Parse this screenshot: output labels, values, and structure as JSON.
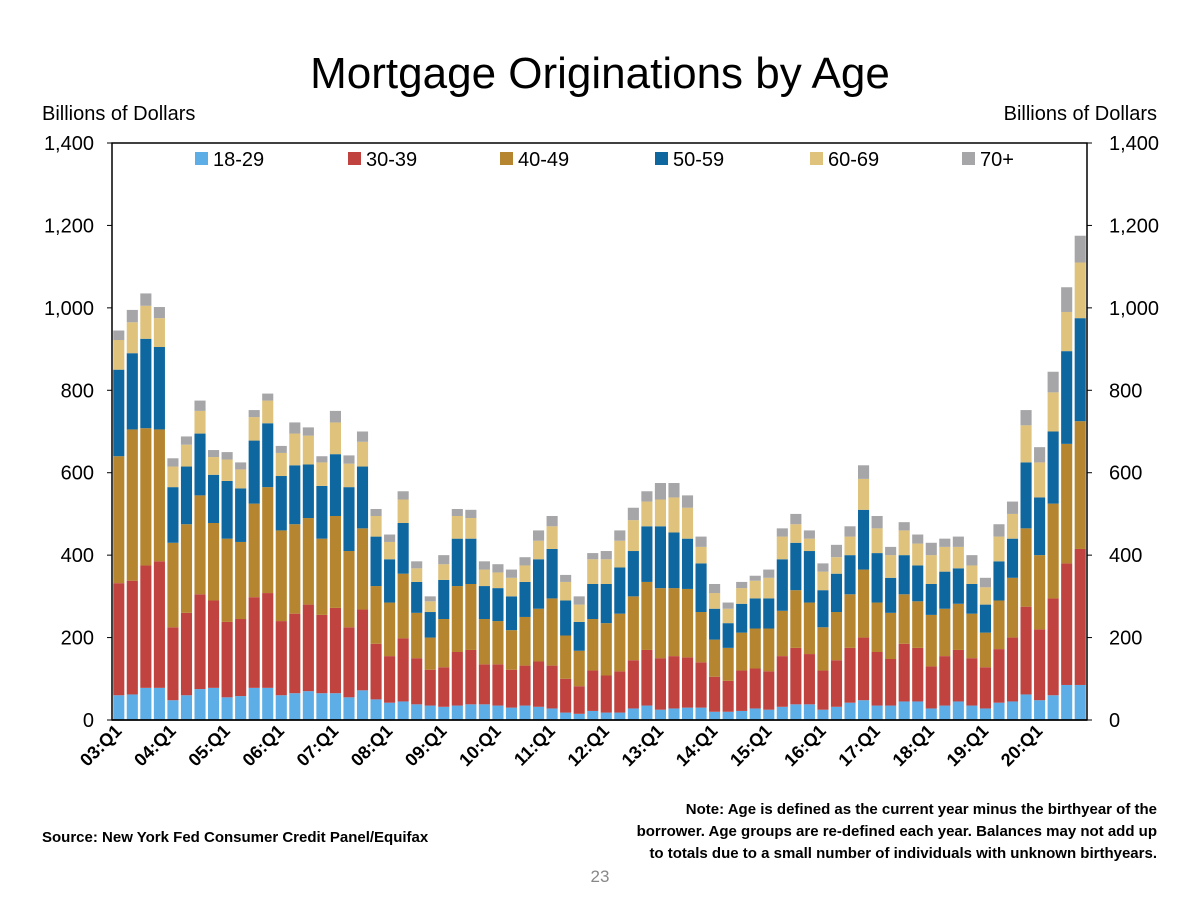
{
  "chart_data": {
    "type": "stacked_bar",
    "title": "Mortgage Originations by Age",
    "ylabel": "Billions of Dollars",
    "y2label": "Billions of Dollars",
    "categories": [
      "03:Q1",
      null,
      null,
      null,
      "04:Q1",
      null,
      null,
      null,
      "05:Q1",
      null,
      null,
      null,
      "06:Q1",
      null,
      null,
      null,
      "07:Q1",
      null,
      null,
      null,
      "08:Q1",
      null,
      null,
      null,
      "09:Q1",
      null,
      null,
      null,
      "10:Q1",
      null,
      null,
      null,
      "11:Q1",
      null,
      null,
      null,
      "12:Q1",
      null,
      null,
      null,
      "13:Q1",
      null,
      null,
      null,
      "14:Q1",
      null,
      null,
      null,
      "15:Q1",
      null,
      null,
      null,
      "16:Q1",
      null,
      null,
      null,
      "17:Q1",
      null,
      null,
      null,
      "18:Q1",
      null,
      null,
      null,
      "19:Q1",
      null,
      null,
      null,
      "20:Q1",
      null,
      null,
      null
    ],
    "series": [
      {
        "name": "18-29",
        "color": "#5daee6",
        "values": [
          60,
          62,
          78,
          78,
          48,
          60,
          75,
          78,
          55,
          58,
          78,
          78,
          60,
          65,
          70,
          65,
          65,
          55,
          72,
          50,
          42,
          45,
          38,
          35,
          32,
          35,
          38,
          38,
          35,
          30,
          35,
          32,
          28,
          18,
          15,
          22,
          18,
          18,
          28,
          35,
          25,
          28,
          30,
          30,
          20,
          20,
          22,
          28,
          25,
          32,
          38,
          38,
          25,
          32,
          42,
          48,
          35,
          35,
          45,
          45,
          28,
          35,
          45,
          35,
          28,
          42,
          45,
          62,
          48,
          60,
          85,
          85
        ]
      },
      {
        "name": "30-39",
        "color": "#c0433f",
        "values": [
          272,
          276,
          297,
          307,
          177,
          200,
          230,
          212,
          183,
          187,
          220,
          230,
          180,
          193,
          210,
          190,
          207,
          170,
          196,
          135,
          113,
          153,
          112,
          87,
          96,
          130,
          132,
          97,
          100,
          92,
          97,
          110,
          104,
          82,
          67,
          98,
          90,
          100,
          117,
          135,
          125,
          127,
          122,
          110,
          85,
          75,
          98,
          97,
          93,
          123,
          137,
          122,
          95,
          113,
          133,
          152,
          130,
          113,
          140,
          130,
          102,
          120,
          125,
          115,
          100,
          130,
          155,
          213,
          172,
          235,
          295,
          330
        ]
      },
      {
        "name": "40-49",
        "color": "#b5862f",
        "values": [
          308,
          367,
          333,
          320,
          205,
          215,
          240,
          188,
          202,
          187,
          227,
          257,
          220,
          217,
          210,
          185,
          223,
          185,
          197,
          140,
          130,
          157,
          110,
          78,
          117,
          160,
          160,
          110,
          105,
          96,
          118,
          128,
          163,
          105,
          86,
          125,
          127,
          140,
          155,
          165,
          170,
          165,
          166,
          122,
          90,
          80,
          92,
          97,
          104,
          110,
          140,
          125,
          105,
          117,
          130,
          165,
          120,
          112,
          120,
          113,
          125,
          115,
          112,
          108,
          84,
          118,
          145,
          190,
          180,
          230,
          290,
          310
        ]
      },
      {
        "name": "50-59",
        "color": "#0f679f",
        "values": [
          210,
          185,
          217,
          200,
          135,
          140,
          150,
          117,
          140,
          130,
          153,
          155,
          132,
          143,
          130,
          128,
          150,
          155,
          150,
          120,
          105,
          123,
          75,
          62,
          95,
          115,
          110,
          80,
          80,
          82,
          85,
          120,
          120,
          85,
          70,
          85,
          95,
          112,
          110,
          135,
          150,
          135,
          122,
          118,
          75,
          60,
          70,
          73,
          73,
          125,
          115,
          125,
          90,
          93,
          95,
          145,
          120,
          85,
          95,
          87,
          75,
          90,
          86,
          72,
          68,
          95,
          95,
          160,
          140,
          175,
          225,
          250
        ]
      },
      {
        "name": "60-69",
        "color": "#dfc27b",
        "values": [
          72,
          75,
          80,
          70,
          50,
          53,
          55,
          43,
          52,
          46,
          57,
          55,
          56,
          77,
          70,
          57,
          77,
          57,
          60,
          50,
          42,
          57,
          33,
          26,
          38,
          55,
          50,
          40,
          38,
          45,
          40,
          45,
          55,
          45,
          42,
          60,
          60,
          65,
          75,
          60,
          65,
          85,
          75,
          40,
          38,
          35,
          38,
          43,
          50,
          55,
          45,
          30,
          45,
          40,
          45,
          75,
          60,
          55,
          60,
          53,
          70,
          60,
          52,
          45,
          42,
          60,
          60,
          90,
          85,
          95,
          95,
          135
        ]
      },
      {
        "name": "70+",
        "color": "#a6a6a8",
        "values": [
          23,
          30,
          30,
          27,
          20,
          20,
          25,
          17,
          18,
          17,
          17,
          17,
          17,
          27,
          20,
          15,
          28,
          20,
          25,
          17,
          18,
          20,
          17,
          12,
          22,
          17,
          20,
          20,
          20,
          20,
          20,
          25,
          25,
          17,
          20,
          15,
          20,
          25,
          30,
          25,
          40,
          35,
          30,
          25,
          22,
          15,
          15,
          12,
          20,
          20,
          25,
          20,
          20,
          30,
          25,
          33,
          30,
          20,
          20,
          22,
          30,
          20,
          25,
          25,
          23,
          30,
          30,
          37,
          37,
          50,
          60,
          65
        ]
      }
    ],
    "ylim": [
      0,
      1400
    ],
    "yticks": [
      0,
      200,
      400,
      600,
      800,
      {
        "value": 1000,
        "label": "1,000"
      },
      {
        "value": 1200,
        "label": "1,200"
      },
      {
        "value": 1400,
        "label": "1,400"
      }
    ],
    "y2lim": [
      0,
      1400
    ],
    "y2ticks": [
      0,
      200,
      400,
      600,
      800,
      {
        "value": 1000,
        "label": "1,000"
      },
      {
        "value": 1200,
        "label": "1,200"
      },
      {
        "value": 1400,
        "label": "1,400"
      }
    ],
    "legend": "top",
    "grid": false,
    "source": "Source: New York Fed Consumer Credit Panel/Equifax",
    "note": [
      "Note: Age is defined as the current year minus the birthyear of the",
      "borrower. Age groups are re-defined each year. Balances may not add up",
      "to totals due to a small number of individuals with unknown birthyears."
    ],
    "page_number": "23"
  }
}
